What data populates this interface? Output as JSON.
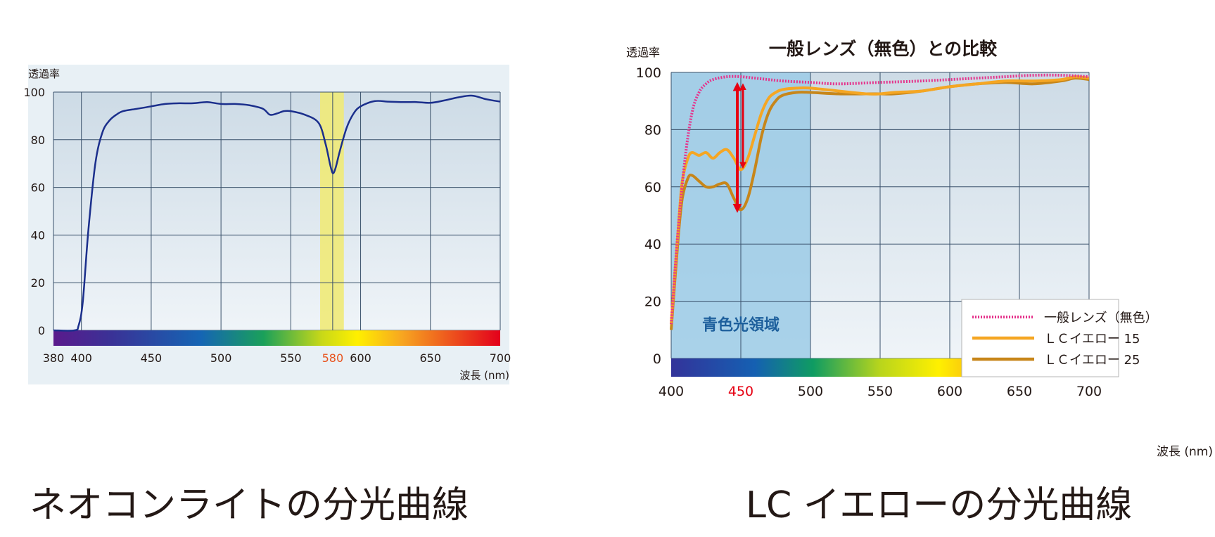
{
  "colors": {
    "plot_bg_top": "#cfdde7",
    "plot_bg_bottom": "#eef3f7",
    "panel_bg": "#e8f0f5",
    "grid": "#39506a",
    "curve_blue": "#1b2f8c",
    "highlight_yellow": "#f0ea78",
    "blue_region": "#a8d0e8",
    "pink": "#e5348c",
    "yellow15": "#f5a623",
    "yellow25": "#c7861a",
    "arrow_red": "#e60012",
    "tick_red": "#e60012",
    "tick_orange": "#e8521d"
  },
  "captions": {
    "left": "ネオコンライトの分光曲線",
    "right": "LC イエローの分光曲線"
  },
  "chart_data": [
    {
      "type": "line",
      "ylabel": "透過率",
      "xlabel": "波長 (nm)",
      "xlim": [
        380,
        700
      ],
      "ylim": [
        0,
        100
      ],
      "yticks": [
        "0",
        "20",
        "40",
        "60",
        "80",
        "100"
      ],
      "xticks": [
        "380",
        "400",
        "450",
        "500",
        "550",
        "580",
        "600",
        "650",
        "700"
      ],
      "highlighted_tick": "580",
      "grid": true,
      "highlight_band": [
        571,
        588
      ],
      "series": [
        {
          "x": [
            380,
            395,
            398,
            401,
            405,
            410,
            415,
            420,
            425,
            430,
            440,
            450,
            460,
            470,
            480,
            490,
            500,
            510,
            520,
            530,
            535,
            540,
            545,
            550,
            560,
            570,
            575,
            578,
            580,
            582,
            585,
            590,
            595,
            600,
            610,
            620,
            630,
            640,
            650,
            660,
            670,
            680,
            690,
            700
          ],
          "y": [
            0,
            0,
            2,
            12,
            42,
            70,
            83,
            88,
            90.5,
            92,
            93,
            94,
            95,
            95.3,
            95.3,
            95.8,
            95,
            95,
            94.5,
            93,
            90.5,
            91,
            92,
            92,
            90.5,
            87,
            78,
            70,
            66,
            68,
            75,
            85,
            91,
            94,
            96.2,
            96,
            95.8,
            95.8,
            95.5,
            96.5,
            97.8,
            98.5,
            97,
            96
          ]
        }
      ]
    },
    {
      "type": "line",
      "title": "一般レンズ（無色）との比較",
      "ylabel": "透過率",
      "xlabel": "波長 (nm)",
      "xlim": [
        400,
        700
      ],
      "ylim": [
        0,
        100
      ],
      "yticks": [
        "0",
        "20",
        "40",
        "60",
        "80",
        "100"
      ],
      "xticks": [
        "400",
        "450",
        "500",
        "550",
        "600",
        "650",
        "700"
      ],
      "highlighted_tick": "450",
      "grid": true,
      "region": {
        "x": [
          400,
          500
        ],
        "label": "青色光領域"
      },
      "arrow": {
        "x": 450,
        "y_from": 97,
        "y_to": 51
      },
      "legend_position": "bottom-right",
      "series": [
        {
          "name": "一般レンズ（無色）",
          "style": "dotted",
          "x": [
            400,
            405,
            410,
            415,
            420,
            425,
            430,
            440,
            450,
            460,
            470,
            480,
            500,
            520,
            550,
            580,
            600,
            620,
            640,
            660,
            680,
            700
          ],
          "y": [
            12,
            45,
            70,
            86,
            93,
            96,
            97.5,
            98.5,
            98.5,
            98,
            97.5,
            97,
            96.5,
            96,
            96.5,
            97,
            97.5,
            98,
            98.5,
            99,
            99,
            98.5
          ]
        },
        {
          "name": "ＬＣイエロー 15",
          "style": "solid",
          "x": [
            400,
            405,
            408,
            412,
            415,
            420,
            425,
            430,
            435,
            440,
            445,
            450,
            455,
            460,
            465,
            470,
            475,
            480,
            490,
            500,
            520,
            540,
            550,
            560,
            580,
            600,
            620,
            640,
            660,
            680,
            690,
            700
          ],
          "y": [
            12,
            45,
            62,
            70,
            72,
            71,
            72,
            70,
            72,
            73,
            70,
            66,
            70,
            78,
            86,
            91,
            93,
            94,
            94.5,
            94.5,
            93.5,
            92.5,
            92.5,
            93,
            93.5,
            95,
            96,
            97,
            97,
            97.5,
            98.5,
            98
          ]
        },
        {
          "name": "ＬＣイエロー 25",
          "style": "solid",
          "x": [
            400,
            405,
            408,
            412,
            415,
            420,
            425,
            430,
            435,
            440,
            445,
            450,
            455,
            460,
            465,
            470,
            475,
            480,
            490,
            500,
            520,
            540,
            550,
            560,
            580,
            600,
            620,
            640,
            660,
            680,
            690,
            700
          ],
          "y": [
            10,
            42,
            56,
            63,
            64,
            62,
            60,
            60,
            61,
            61,
            56,
            52,
            56,
            66,
            78,
            86,
            90,
            92,
            93,
            93,
            92.5,
            92.5,
            92.5,
            92.5,
            93.5,
            95,
            96,
            96.5,
            96,
            97,
            98,
            97.5
          ]
        }
      ]
    }
  ]
}
